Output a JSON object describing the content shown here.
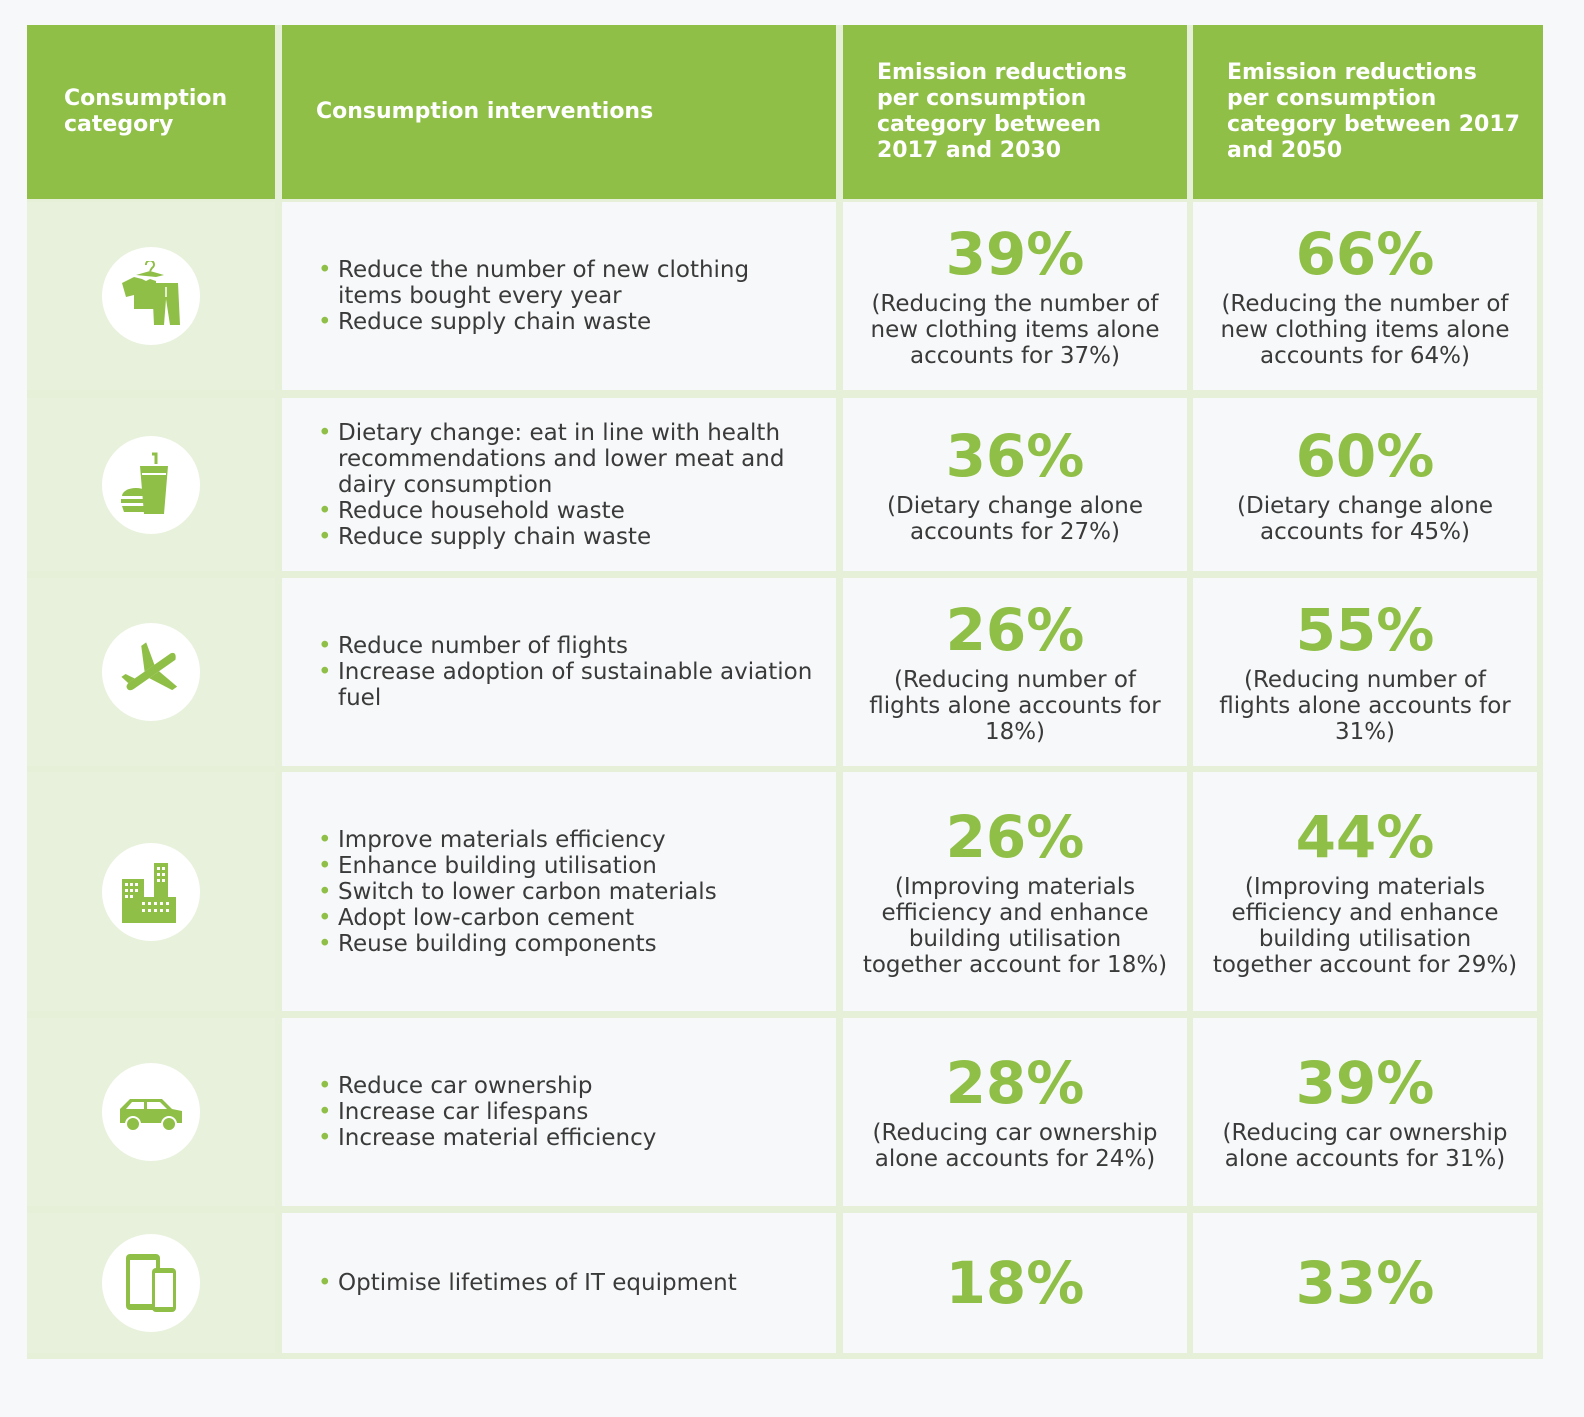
{
  "header": {
    "category": "Consumption category",
    "interventions": "Consumption interventions",
    "col2030": "Emission reductions per consumption category between 2017 and 2030",
    "col2050": "Emission reductions per consumption category between 2017 and 2050"
  },
  "rows": [
    {
      "icon": "clothing-icon",
      "interventions": [
        "Reduce the number of new clothing items bought every year",
        "Reduce supply chain waste"
      ],
      "pct2030": "39%",
      "note2030": "(Reducing the number of new clothing items alone accounts for 37%)",
      "pct2050": "66%",
      "note2050": "(Reducing the number of new clothing items alone accounts for 64%)"
    },
    {
      "icon": "food-icon",
      "interventions": [
        "Dietary change: eat in line with health recommendations and lower meat and dairy consumption",
        "Reduce household waste",
        "Reduce supply chain waste"
      ],
      "pct2030": "36%",
      "note2030": "(Dietary change alone accounts for 27%)",
      "pct2050": "60%",
      "note2050": "(Dietary change alone accounts for 45%)"
    },
    {
      "icon": "airplane-icon",
      "interventions": [
        "Reduce number of flights",
        "Increase adoption of sustainable aviation fuel"
      ],
      "pct2030": "26%",
      "note2030": "(Reducing number of flights alone accounts for 18%)",
      "pct2050": "55%",
      "note2050": "(Reducing number of flights alone accounts for 31%)"
    },
    {
      "icon": "buildings-icon",
      "interventions": [
        "Improve materials efficiency",
        "Enhance building utilisation",
        "Switch to lower carbon materials",
        "Adopt low-carbon cement",
        "Reuse building components"
      ],
      "pct2030": "26%",
      "note2030": "(Improving materials efficiency and enhance building utilisation together account for 18%)",
      "pct2050": "44%",
      "note2050": "(Improving materials efficiency and enhance building utilisation together account for 29%)"
    },
    {
      "icon": "car-icon",
      "interventions": [
        "Reduce car ownership",
        "Increase car lifespans",
        "Increase material efficiency"
      ],
      "pct2030": "28%",
      "note2030": "(Reducing car ownership alone accounts for 24%)",
      "pct2050": "39%",
      "note2050": "(Reducing car ownership alone accounts for 31%)"
    },
    {
      "icon": "devices-icon",
      "interventions": [
        "Optimise lifetimes of IT equipment"
      ],
      "pct2030": "18%",
      "note2030": "",
      "pct2050": "33%",
      "note2050": ""
    }
  ],
  "colors": {
    "accent": "#8fbf47",
    "icon_cell": "#e8f1dc",
    "text": "#3a3a3a"
  }
}
